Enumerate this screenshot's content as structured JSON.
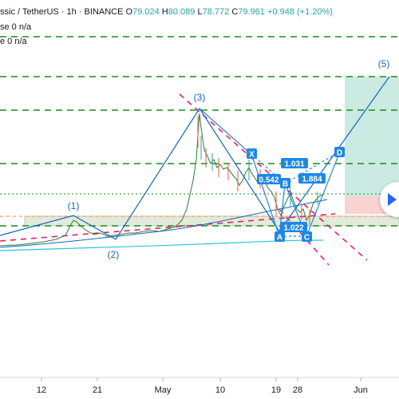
{
  "header": {
    "symbol_text": "ssic / TetherUS · 1h · BINANCE",
    "open_label": "O",
    "open_value": "79.024",
    "high_label": "H",
    "high_value": "80.089",
    "low_label": "L",
    "low_value": "78.772",
    "close_label": "C",
    "close_value": "79.961",
    "change_text": "+0.948 (+1.20%)"
  },
  "studies": [
    {
      "label": "se 0",
      "value": "n/a"
    },
    {
      "label": "e 0",
      "value": "n/a"
    }
  ],
  "x_axis": {
    "labels": [
      "12",
      "21",
      "May",
      "10",
      "19",
      "28",
      "Jun"
    ]
  },
  "wave_labels": {
    "w1": "(1)",
    "w2": "(2)",
    "w3": "(3)",
    "w5": "(5)"
  },
  "pattern_labels": {
    "X": "X",
    "A": "A",
    "B": "B",
    "C": "C",
    "D": "D"
  },
  "ratios": {
    "r1": "1.031",
    "r2": "0.542",
    "r3": "1.884",
    "r4": "1.022"
  },
  "colors": {
    "candle_up": "#26a69a",
    "candle_down": "#ef5350",
    "wave": "#1565c0",
    "pattern": "#1e88e5",
    "green_dash": "#1b8a1b",
    "red_dash": "#e91e63",
    "ma_line": "#26c6da",
    "target_zone": "#a8dccf",
    "stop_zone": "#f8c7c7"
  }
}
